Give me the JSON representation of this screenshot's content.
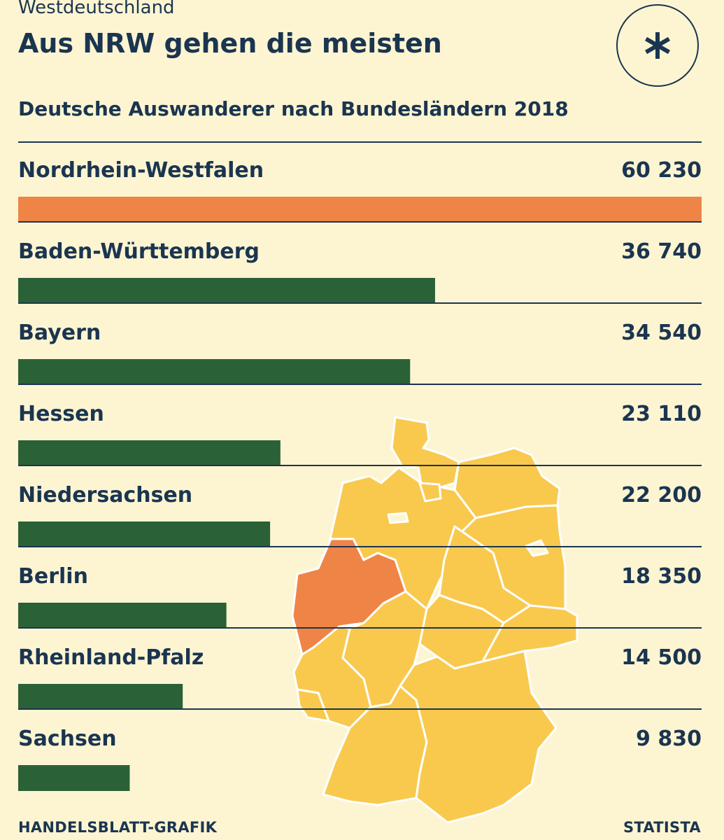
{
  "header": {
    "kicker": "Westdeutschland",
    "title": "Aus NRW gehen die meisten",
    "badge_icon": "asterisk-icon"
  },
  "chart_data": {
    "type": "bar",
    "orientation": "horizontal",
    "title": "Deutsche Auswanderer nach Bundesländern 2018",
    "categories": [
      "Nordrhein-Westfalen",
      "Baden-Württemberg",
      "Bayern",
      "Hessen",
      "Niedersachsen",
      "Berlin",
      "Rheinland-Pfalz",
      "Sachsen"
    ],
    "values": [
      60230,
      36740,
      34540,
      23110,
      22200,
      18350,
      14500,
      9830
    ],
    "value_labels": [
      "60 230",
      "36 740",
      "34 540",
      "23 110",
      "22 200",
      "18 350",
      "14 500",
      "9 830"
    ],
    "highlight_index": 0,
    "colors": {
      "highlight": "#ef8447",
      "default": "#2b6137"
    },
    "xlim": [
      0,
      60230
    ],
    "grid": false
  },
  "map": {
    "icon": "germany-map-icon",
    "highlight_region": "Nordrhein-Westfalen",
    "colors": {
      "land": "#f9c94e",
      "highlight": "#ef8447",
      "border": "#ffffff"
    }
  },
  "footer": {
    "source_left": "HANDELSBLATT-GRAFIK",
    "source_right": "STATISTA"
  }
}
